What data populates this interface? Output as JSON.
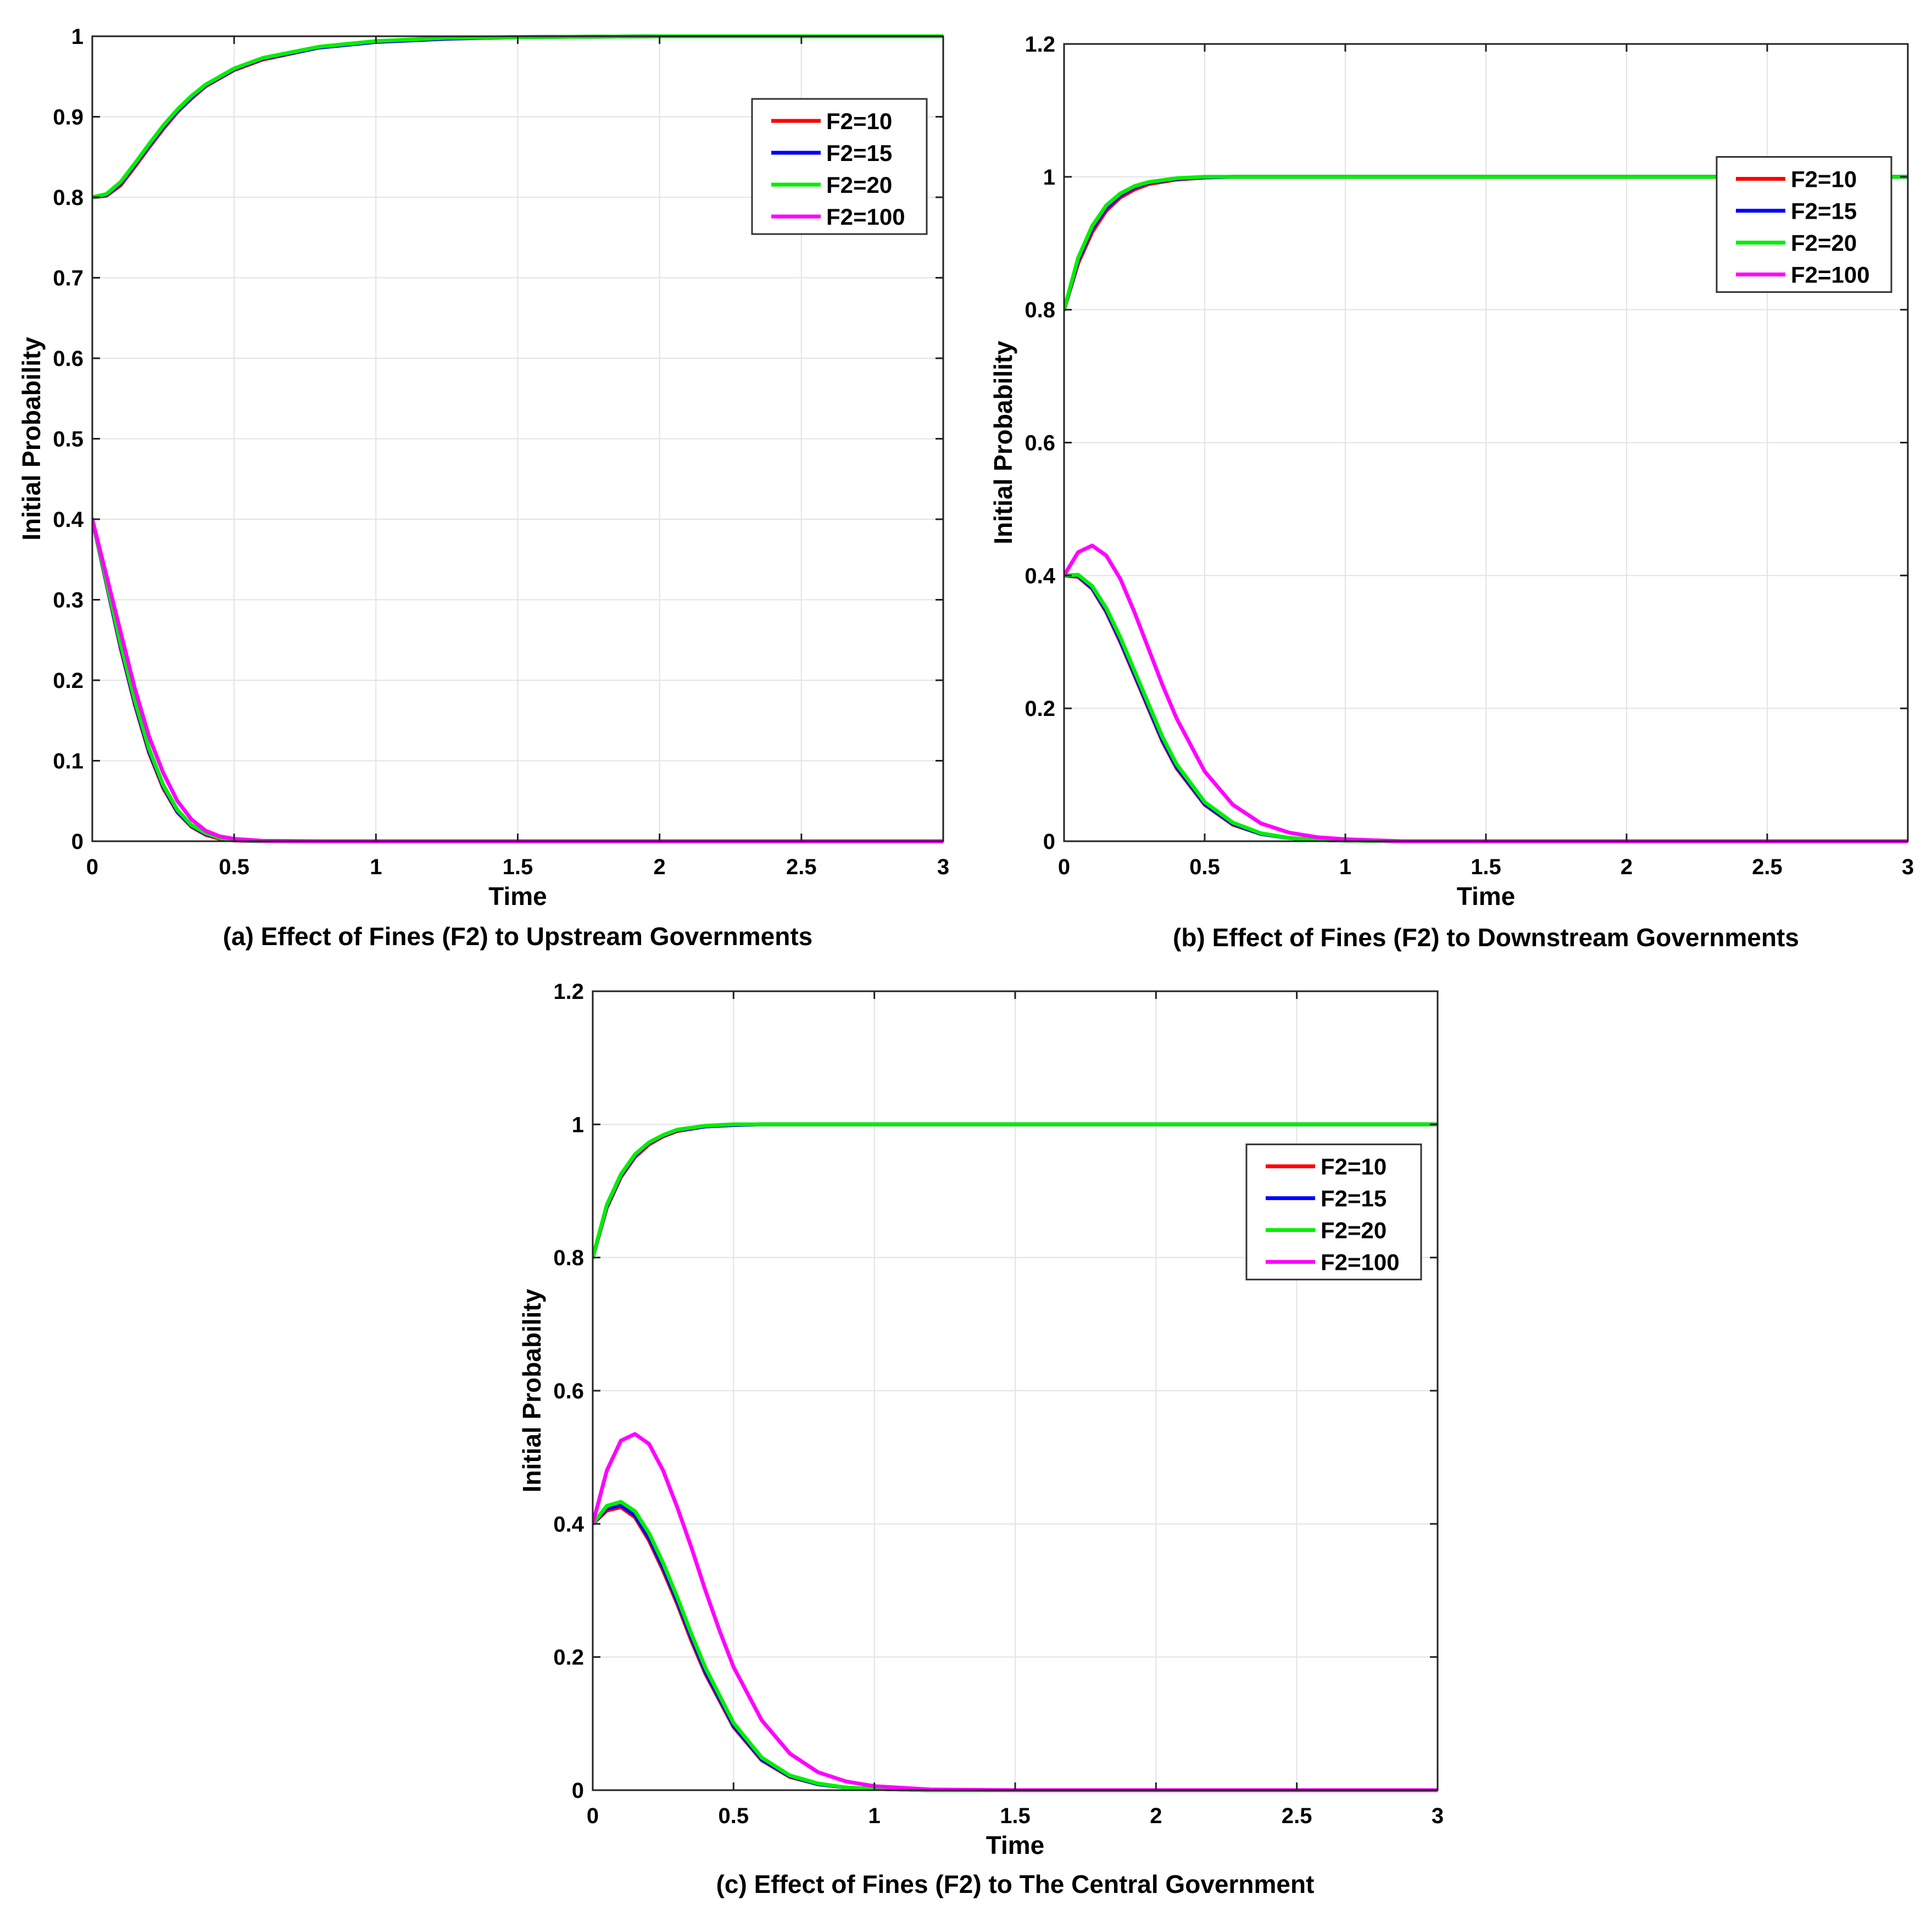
{
  "figure_colors": {
    "F2=10": "#ff0000",
    "F2=15": "#0000ff",
    "F2=20": "#00ee00",
    "F2=100": "#ff00ff"
  },
  "chart_data": [
    {
      "type": "line",
      "title": "(a) Effect of Fines (F2) to Upstream Governments",
      "xlabel": "Time",
      "ylabel": "Initial Probability",
      "xlim": [
        0,
        3
      ],
      "ylim": [
        0,
        1
      ],
      "xticks": [
        "0",
        "0.5",
        "1",
        "1.5",
        "2",
        "2.5",
        "3"
      ],
      "yticks": [
        "0",
        "0.1",
        "0.2",
        "0.3",
        "0.4",
        "0.5",
        "0.6",
        "0.7",
        "0.8",
        "0.9",
        "1"
      ],
      "grid": true,
      "legend_position": "top-right",
      "legend": [
        "F2=10",
        "F2=15",
        "F2=20",
        "F2=100"
      ],
      "series": [
        {
          "name": "F2=10 (upper)",
          "legend": "F2=10",
          "color": "#ff0000",
          "x": [
            0,
            0.05,
            0.1,
            0.15,
            0.2,
            0.25,
            0.3,
            0.35,
            0.4,
            0.5,
            0.6,
            0.8,
            1.0,
            1.25,
            1.5,
            2.0,
            2.5,
            3.0
          ],
          "y": [
            0.8,
            0.802,
            0.815,
            0.838,
            0.862,
            0.885,
            0.906,
            0.923,
            0.938,
            0.958,
            0.971,
            0.986,
            0.993,
            0.997,
            0.999,
            1.0,
            1.0,
            1.0
          ]
        },
        {
          "name": "F2=15 (upper)",
          "legend": "F2=15",
          "color": "#0000ff",
          "x": [
            0,
            0.05,
            0.1,
            0.15,
            0.2,
            0.25,
            0.3,
            0.35,
            0.4,
            0.5,
            0.6,
            0.8,
            1.0,
            1.25,
            1.5,
            2.0,
            2.5,
            3.0
          ],
          "y": [
            0.8,
            0.803,
            0.817,
            0.84,
            0.864,
            0.887,
            0.907,
            0.924,
            0.939,
            0.959,
            0.972,
            0.986,
            0.993,
            0.997,
            0.999,
            1.0,
            1.0,
            1.0
          ]
        },
        {
          "name": "F2=20 (upper)",
          "legend": "F2=20",
          "color": "#00ee00",
          "x": [
            0,
            0.05,
            0.1,
            0.15,
            0.2,
            0.25,
            0.3,
            0.35,
            0.4,
            0.5,
            0.6,
            0.8,
            1.0,
            1.25,
            1.5,
            2.0,
            2.5,
            3.0
          ],
          "y": [
            0.8,
            0.804,
            0.819,
            0.842,
            0.866,
            0.889,
            0.909,
            0.926,
            0.94,
            0.96,
            0.973,
            0.987,
            0.994,
            0.998,
            0.999,
            1.0,
            1.0,
            1.0
          ]
        },
        {
          "name": "F2=10 (lower)",
          "legend": "F2=10",
          "color": "#ff0000",
          "x": [
            0,
            0.05,
            0.1,
            0.15,
            0.2,
            0.25,
            0.3,
            0.35,
            0.4,
            0.45,
            0.5,
            0.6,
            0.8,
            1.0,
            1.5,
            2.0,
            2.5,
            3.0
          ],
          "y": [
            0.4,
            0.32,
            0.24,
            0.17,
            0.11,
            0.066,
            0.036,
            0.018,
            0.008,
            0.003,
            0.001,
            0.0,
            0.0,
            0.0,
            0.0,
            0.0,
            0.0,
            0.0
          ]
        },
        {
          "name": "F2=15 (lower)",
          "legend": "F2=15",
          "color": "#0000ff",
          "x": [
            0,
            0.05,
            0.1,
            0.15,
            0.2,
            0.25,
            0.3,
            0.35,
            0.4,
            0.45,
            0.5,
            0.6,
            0.8,
            1.0,
            1.5,
            2.0,
            2.5,
            3.0
          ],
          "y": [
            0.4,
            0.321,
            0.242,
            0.172,
            0.112,
            0.068,
            0.037,
            0.019,
            0.009,
            0.004,
            0.0015,
            0.0,
            0.0,
            0.0,
            0.0,
            0.0,
            0.0,
            0.0
          ]
        },
        {
          "name": "F2=20 (lower)",
          "legend": "F2=20",
          "color": "#00ee00",
          "x": [
            0,
            0.05,
            0.1,
            0.15,
            0.2,
            0.25,
            0.3,
            0.35,
            0.4,
            0.45,
            0.5,
            0.6,
            0.8,
            1.0,
            1.5,
            2.0,
            2.5,
            3.0
          ],
          "y": [
            0.4,
            0.323,
            0.245,
            0.175,
            0.115,
            0.07,
            0.039,
            0.02,
            0.01,
            0.004,
            0.002,
            0.0,
            0.0,
            0.0,
            0.0,
            0.0,
            0.0,
            0.0
          ]
        },
        {
          "name": "F2=100 (lower)",
          "legend": "F2=100",
          "color": "#ff00ff",
          "x": [
            0,
            0.05,
            0.1,
            0.15,
            0.2,
            0.25,
            0.3,
            0.35,
            0.4,
            0.45,
            0.5,
            0.6,
            0.8,
            1.0,
            1.5,
            2.0,
            2.5,
            3.0
          ],
          "y": [
            0.4,
            0.33,
            0.26,
            0.19,
            0.13,
            0.085,
            0.05,
            0.027,
            0.013,
            0.006,
            0.003,
            0.0005,
            0.0,
            0.0,
            0.0,
            0.0,
            0.0,
            0.0
          ]
        }
      ]
    },
    {
      "type": "line",
      "title": "(b) Effect of Fines (F2) to Downstream Governments",
      "xlabel": "Time",
      "ylabel": "Initial Probability",
      "xlim": [
        0,
        3
      ],
      "ylim": [
        0,
        1.2
      ],
      "xticks": [
        "0",
        "0.5",
        "1",
        "1.5",
        "2",
        "2.5",
        "3"
      ],
      "yticks": [
        "0",
        "0.2",
        "0.4",
        "0.6",
        "0.8",
        "1",
        "1.2"
      ],
      "grid": true,
      "legend_position": "top-right",
      "legend": [
        "F2=10",
        "F2=15",
        "F2=20",
        "F2=100"
      ],
      "series": [
        {
          "name": "F2=10 (upper)",
          "legend": "F2=10",
          "color": "#ff0000",
          "x": [
            0,
            0.05,
            0.1,
            0.15,
            0.2,
            0.25,
            0.3,
            0.4,
            0.5,
            0.6,
            0.8,
            1.0,
            1.5,
            2.0,
            2.5,
            3.0
          ],
          "y": [
            0.8,
            0.87,
            0.917,
            0.949,
            0.969,
            0.981,
            0.989,
            0.996,
            0.999,
            1.0,
            1.0,
            1.0,
            1.0,
            1.0,
            1.0,
            1.0
          ]
        },
        {
          "name": "F2=15 (upper)",
          "legend": "F2=15",
          "color": "#0000ff",
          "x": [
            0,
            0.05,
            0.1,
            0.15,
            0.2,
            0.25,
            0.3,
            0.4,
            0.5,
            0.6,
            0.8,
            1.0,
            1.5,
            2.0,
            2.5,
            3.0
          ],
          "y": [
            0.8,
            0.874,
            0.922,
            0.953,
            0.972,
            0.984,
            0.991,
            0.997,
            0.999,
            1.0,
            1.0,
            1.0,
            1.0,
            1.0,
            1.0,
            1.0
          ]
        },
        {
          "name": "F2=20 (upper)",
          "legend": "F2=20",
          "color": "#00ee00",
          "x": [
            0,
            0.05,
            0.1,
            0.15,
            0.2,
            0.25,
            0.3,
            0.4,
            0.5,
            0.6,
            0.8,
            1.0,
            1.5,
            2.0,
            2.5,
            3.0
          ],
          "y": [
            0.8,
            0.878,
            0.926,
            0.957,
            0.975,
            0.986,
            0.992,
            0.998,
            1.0,
            1.0,
            1.0,
            1.0,
            1.0,
            1.0,
            1.0,
            1.0
          ]
        },
        {
          "name": "F2=10 (lower)",
          "legend": "F2=10",
          "color": "#ff0000",
          "x": [
            0,
            0.05,
            0.1,
            0.15,
            0.2,
            0.25,
            0.3,
            0.35,
            0.4,
            0.5,
            0.6,
            0.7,
            0.8,
            0.9,
            1.0,
            1.2,
            1.5,
            2.0,
            2.5,
            3.0
          ],
          "y": [
            0.4,
            0.398,
            0.38,
            0.345,
            0.3,
            0.25,
            0.2,
            0.15,
            0.11,
            0.055,
            0.025,
            0.011,
            0.005,
            0.002,
            0.001,
            0.0,
            0.0,
            0.0,
            0.0,
            0.0
          ]
        },
        {
          "name": "F2=15 (lower)",
          "legend": "F2=15",
          "color": "#0000ff",
          "x": [
            0,
            0.05,
            0.1,
            0.15,
            0.2,
            0.25,
            0.3,
            0.35,
            0.4,
            0.5,
            0.6,
            0.7,
            0.8,
            0.9,
            1.0,
            1.2,
            1.5,
            2.0,
            2.5,
            3.0
          ],
          "y": [
            0.4,
            0.399,
            0.381,
            0.347,
            0.302,
            0.252,
            0.202,
            0.152,
            0.112,
            0.056,
            0.026,
            0.011,
            0.005,
            0.002,
            0.001,
            0.0,
            0.0,
            0.0,
            0.0,
            0.0
          ]
        },
        {
          "name": "F2=20 (lower)",
          "legend": "F2=20",
          "color": "#00ee00",
          "x": [
            0,
            0.05,
            0.1,
            0.15,
            0.2,
            0.25,
            0.3,
            0.35,
            0.4,
            0.5,
            0.6,
            0.7,
            0.8,
            0.9,
            1.0,
            1.2,
            1.5,
            2.0,
            2.5,
            3.0
          ],
          "y": [
            0.4,
            0.401,
            0.384,
            0.351,
            0.307,
            0.257,
            0.207,
            0.157,
            0.116,
            0.059,
            0.028,
            0.012,
            0.005,
            0.002,
            0.001,
            0.0,
            0.0,
            0.0,
            0.0,
            0.0
          ]
        },
        {
          "name": "F2=100 (lower)",
          "legend": "F2=100",
          "color": "#ff00ff",
          "x": [
            0,
            0.05,
            0.1,
            0.15,
            0.2,
            0.25,
            0.3,
            0.35,
            0.4,
            0.5,
            0.6,
            0.7,
            0.8,
            0.9,
            1.0,
            1.2,
            1.5,
            2.0,
            2.5,
            3.0
          ],
          "y": [
            0.4,
            0.435,
            0.445,
            0.43,
            0.395,
            0.345,
            0.29,
            0.235,
            0.185,
            0.105,
            0.055,
            0.027,
            0.013,
            0.006,
            0.003,
            0.0,
            0.0,
            0.0,
            0.0,
            0.0
          ]
        }
      ]
    },
    {
      "type": "line",
      "title": "(c) Effect of Fines (F2) to The Central Government",
      "xlabel": "Time",
      "ylabel": "Initial Probability",
      "xlim": [
        0,
        3
      ],
      "ylim": [
        0,
        1.2
      ],
      "xticks": [
        "0",
        "0.5",
        "1",
        "1.5",
        "2",
        "2.5",
        "3"
      ],
      "yticks": [
        "0",
        "0.2",
        "0.4",
        "0.6",
        "0.8",
        "1",
        "1.2"
      ],
      "grid": true,
      "legend_position": "top-right",
      "legend": [
        "F2=10",
        "F2=15",
        "F2=20",
        "F2=100"
      ],
      "series": [
        {
          "name": "F2=10 (upper)",
          "legend": "F2=10",
          "color": "#ff0000",
          "x": [
            0,
            0.05,
            0.1,
            0.15,
            0.2,
            0.25,
            0.3,
            0.4,
            0.5,
            0.6,
            0.8,
            1.0,
            1.5,
            2.0,
            2.5,
            3.0
          ],
          "y": [
            0.8,
            0.875,
            0.921,
            0.951,
            0.97,
            0.982,
            0.99,
            0.997,
            0.999,
            1.0,
            1.0,
            1.0,
            1.0,
            1.0,
            1.0,
            1.0
          ]
        },
        {
          "name": "F2=15 (upper)",
          "legend": "F2=15",
          "color": "#0000ff",
          "x": [
            0,
            0.05,
            0.1,
            0.15,
            0.2,
            0.25,
            0.3,
            0.4,
            0.5,
            0.6,
            0.8,
            1.0,
            1.5,
            2.0,
            2.5,
            3.0
          ],
          "y": [
            0.8,
            0.877,
            0.923,
            0.953,
            0.972,
            0.983,
            0.991,
            0.997,
            0.999,
            1.0,
            1.0,
            1.0,
            1.0,
            1.0,
            1.0,
            1.0
          ]
        },
        {
          "name": "F2=20 (upper)",
          "legend": "F2=20",
          "color": "#00ee00",
          "x": [
            0,
            0.05,
            0.1,
            0.15,
            0.2,
            0.25,
            0.3,
            0.4,
            0.5,
            0.6,
            0.8,
            1.0,
            1.5,
            2.0,
            2.5,
            3.0
          ],
          "y": [
            0.8,
            0.879,
            0.925,
            0.955,
            0.973,
            0.984,
            0.992,
            0.998,
            1.0,
            1.0,
            1.0,
            1.0,
            1.0,
            1.0,
            1.0,
            1.0
          ]
        },
        {
          "name": "F2=10 (lower)",
          "legend": "F2=10",
          "color": "#ff0000",
          "x": [
            0,
            0.05,
            0.1,
            0.15,
            0.2,
            0.25,
            0.3,
            0.35,
            0.4,
            0.5,
            0.6,
            0.7,
            0.8,
            0.9,
            1.0,
            1.2,
            1.5,
            2.0,
            2.5,
            3.0
          ],
          "y": [
            0.4,
            0.42,
            0.425,
            0.41,
            0.375,
            0.33,
            0.28,
            0.225,
            0.175,
            0.095,
            0.045,
            0.02,
            0.009,
            0.004,
            0.002,
            0.0,
            0.0,
            0.0,
            0.0,
            0.0
          ]
        },
        {
          "name": "F2=15 (lower)",
          "legend": "F2=15",
          "color": "#0000ff",
          "x": [
            0,
            0.05,
            0.1,
            0.15,
            0.2,
            0.25,
            0.3,
            0.35,
            0.4,
            0.5,
            0.6,
            0.7,
            0.8,
            0.9,
            1.0,
            1.2,
            1.5,
            2.0,
            2.5,
            3.0
          ],
          "y": [
            0.4,
            0.423,
            0.428,
            0.413,
            0.379,
            0.334,
            0.284,
            0.229,
            0.178,
            0.097,
            0.046,
            0.021,
            0.009,
            0.004,
            0.002,
            0.0,
            0.0,
            0.0,
            0.0,
            0.0
          ]
        },
        {
          "name": "F2=20 (lower)",
          "legend": "F2=20",
          "color": "#00ee00",
          "x": [
            0,
            0.05,
            0.1,
            0.15,
            0.2,
            0.25,
            0.3,
            0.35,
            0.4,
            0.5,
            0.6,
            0.7,
            0.8,
            0.9,
            1.0,
            1.2,
            1.5,
            2.0,
            2.5,
            3.0
          ],
          "y": [
            0.4,
            0.427,
            0.433,
            0.419,
            0.386,
            0.341,
            0.29,
            0.235,
            0.184,
            0.101,
            0.049,
            0.022,
            0.01,
            0.004,
            0.002,
            0.0,
            0.0,
            0.0,
            0.0,
            0.0
          ]
        },
        {
          "name": "F2=100 (lower)",
          "legend": "F2=100",
          "color": "#ff00ff",
          "x": [
            0,
            0.05,
            0.1,
            0.15,
            0.2,
            0.25,
            0.3,
            0.35,
            0.4,
            0.45,
            0.5,
            0.6,
            0.7,
            0.8,
            0.9,
            1.0,
            1.2,
            1.5,
            2.0,
            2.5,
            3.0
          ],
          "y": [
            0.4,
            0.48,
            0.525,
            0.535,
            0.52,
            0.48,
            0.425,
            0.365,
            0.3,
            0.24,
            0.185,
            0.105,
            0.055,
            0.027,
            0.013,
            0.006,
            0.001,
            0.0,
            0.0,
            0.0,
            0.0
          ]
        }
      ]
    }
  ]
}
